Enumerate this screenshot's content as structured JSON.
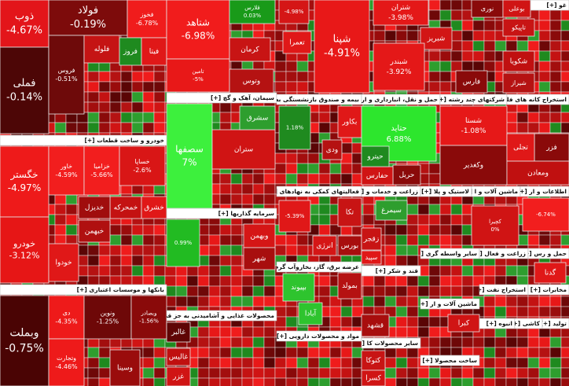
{
  "sector_headers": [
    "[+] خودرو و ساخت قطعات",
    "[+] بانکها و موسسات اعتباری",
    "[+] سیمان، آهک و گچ",
    "[+] سرمایه گذاریها",
    "[+] محصولات غذایی و آشامیدنی به جز قند",
    "[+] بیمه و صندوق بازنشستگی به",
    "[+] فعالیتهای کمکی به نهادهای",
    "[+] عرضه برق، گاز، بخاروآب گرم",
    "[+] مواد و محصولات دارویی",
    "[+] حمل و نقل، انبارداری و ار",
    "[+] شرکتهای چند رشته",
    "[+] استخراج کانه های فلزی",
    "[+] زراعت و خدمات و",
    "[+] لاستیک و پلا",
    "[+] ماشین آلات و ا",
    "[+] اطلاعات و ار",
    "[+] قند و شکر",
    "[+] سایر محصولات کا",
    "[+] سایر واسطه گری",
    "[+] زراعت و فعال",
    "[+] حمل و رس",
    "[+] استخراج نفت",
    "[+] مخابرات",
    "[+] ماشین آلات و ار",
    "[+] انبوه",
    "[+] کاشی",
    "[+] تولید",
    "[+] ساخت محصولا",
    "[+] غو"
  ],
  "tiles": [
    {
      "name": "ذوب",
      "change": "-4.67%"
    },
    {
      "name": "فولاد",
      "change": "-0.19%"
    },
    {
      "name": "فخوز",
      "change": "-6.78%"
    },
    {
      "name": "فملی",
      "change": "-0.14%"
    },
    {
      "name": "فروس",
      "change": "-0.51%"
    },
    {
      "name": "فلوله"
    },
    {
      "name": "فروز"
    },
    {
      "name": "فیتا"
    },
    {
      "name": "خگستر",
      "change": "-4.97%"
    },
    {
      "name": "خودرو",
      "change": "-3.12%"
    },
    {
      "name": "خاور",
      "change": "-4.59%"
    },
    {
      "name": "خزامیا",
      "change": "-5.66%"
    },
    {
      "name": "خساپا",
      "change": "-2.6%"
    },
    {
      "name": "خمحرکه"
    },
    {
      "name": "خدیزل"
    },
    {
      "name": "خشرق"
    },
    {
      "name": "خبهمن"
    },
    {
      "name": "خودوا"
    },
    {
      "name": "وبملت",
      "change": "-0.75%"
    },
    {
      "name": "دی",
      "change": "-4.35%"
    },
    {
      "name": "وتجارت",
      "change": "-4.46%"
    },
    {
      "name": "ونوین",
      "change": "-1.25%"
    },
    {
      "name": "وبصادر",
      "change": "-1.56%"
    },
    {
      "name": "وسینا"
    },
    {
      "name": "شتاهد",
      "change": "-6.98%"
    },
    {
      "name": "تامین",
      "change": "-5%"
    },
    {
      "name": "قلارس",
      "change": "0.03%"
    },
    {
      "name": "کرمان"
    },
    {
      "name": "وتوس"
    },
    {
      "name": "تعمرا"
    },
    {
      "change": "-4.98%"
    },
    {
      "name": "شپنا",
      "change": "-4.91%"
    },
    {
      "name": "شتران",
      "change": "-3.98%"
    },
    {
      "name": "شبریز"
    },
    {
      "name": "شبندر",
      "change": "-3.92%"
    },
    {
      "name": "سصفها",
      "change": "7%"
    },
    {
      "name": "ستران"
    },
    {
      "name": "سشرق"
    },
    {
      "change": "0.99%"
    },
    {
      "name": "وبهمن"
    },
    {
      "name": "شهر"
    },
    {
      "name": "غالبر"
    },
    {
      "name": "غالیس"
    },
    {
      "name": "غزر"
    },
    {
      "change": "1.18%"
    },
    {
      "name": "بکاور"
    },
    {
      "name": "ودی"
    },
    {
      "name": "تکا"
    },
    {
      "change": "-5.39%"
    },
    {
      "name": "انرژی"
    },
    {
      "name": "بورس"
    },
    {
      "name": "بمولد"
    },
    {
      "name": "بپیوند"
    },
    {
      "name": "آبادا"
    },
    {
      "name": "حتاید",
      "change": "6.88%"
    },
    {
      "name": "حریل"
    },
    {
      "name": "حفارس"
    },
    {
      "name": "حیترو"
    },
    {
      "name": "سیمرغ"
    },
    {
      "name": "زقجر"
    },
    {
      "name": "سپید"
    },
    {
      "name": "قشهد"
    },
    {
      "name": "کتوکا"
    },
    {
      "name": "کسرا"
    },
    {
      "name": "شستا",
      "change": "-1.08%"
    },
    {
      "name": "وکغدیر"
    },
    {
      "name": "کچیرا",
      "change": "0%"
    },
    {
      "name": "نوری"
    },
    {
      "name": "بوعلی"
    },
    {
      "name": "تاپیکو"
    },
    {
      "name": "شکویا"
    },
    {
      "name": "شیراز"
    },
    {
      "name": "فارس"
    },
    {
      "name": "فزر"
    },
    {
      "name": "تجلی"
    },
    {
      "name": "ومعادن"
    },
    {
      "change": "-6.74%"
    },
    {
      "name": "گدنا"
    },
    {
      "name": "کبرا"
    }
  ]
}
